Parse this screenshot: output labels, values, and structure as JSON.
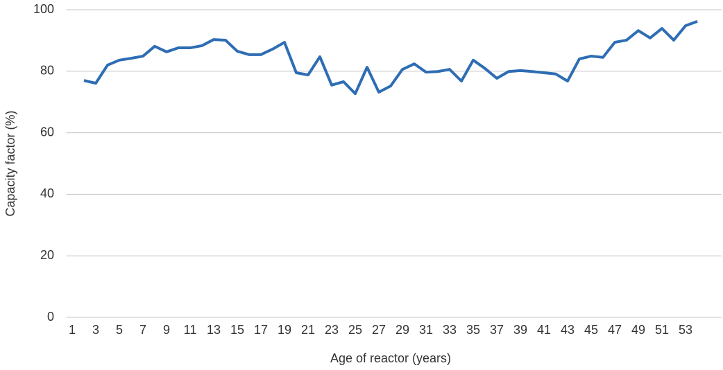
{
  "chart_data": {
    "type": "line",
    "xlabel": "Age of reactor (years)",
    "ylabel": "Capacity factor (%)",
    "categories": [
      1,
      null,
      3,
      null,
      5,
      null,
      7,
      null,
      9,
      null,
      11,
      null,
      13,
      null,
      15,
      null,
      17,
      null,
      19,
      null,
      21,
      null,
      23,
      null,
      25,
      null,
      27,
      null,
      29,
      null,
      31,
      null,
      33,
      null,
      35,
      null,
      37,
      null,
      39,
      null,
      41,
      null,
      43,
      null,
      45,
      null,
      47,
      null,
      49,
      null,
      51,
      null,
      53,
      null
    ],
    "values": [
      null,
      77.0,
      76.1,
      82.0,
      83.6,
      84.2,
      84.9,
      88.1,
      86.3,
      87.6,
      87.6,
      88.3,
      90.3,
      90.1,
      86.5,
      85.4,
      85.4,
      87.2,
      89.4,
      79.5,
      78.8,
      84.7,
      75.5,
      76.6,
      72.7,
      81.3,
      73.2,
      75.2,
      80.6,
      82.4,
      79.7,
      79.9,
      80.6,
      76.8,
      83.6,
      80.9,
      77.7,
      79.9,
      80.2,
      79.9,
      79.5,
      79.1,
      76.8,
      84.0,
      84.9,
      84.5,
      89.4,
      90.1,
      93.2,
      90.8,
      93.9,
      90.1,
      94.8,
      96.2
    ],
    "color": "#2e6db4",
    "ylim": [
      0,
      100
    ],
    "yticks": [
      0,
      20,
      40,
      60,
      80,
      100
    ],
    "grid": true
  }
}
